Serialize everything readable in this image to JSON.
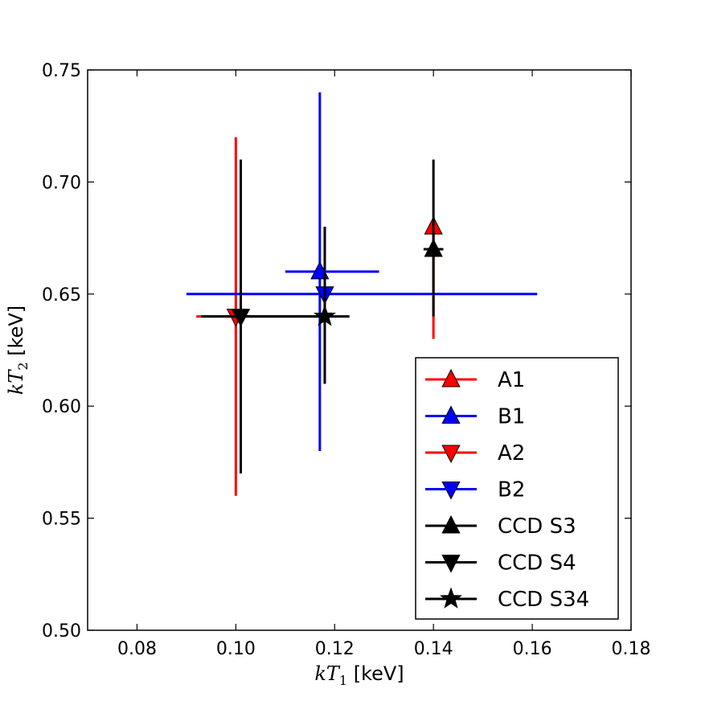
{
  "chart_data": {
    "type": "scatter",
    "title": "",
    "xlabel": {
      "math_var": "kT",
      "math_sub": "1",
      "unit": " [keV]"
    },
    "ylabel": {
      "math_var": "kT",
      "math_sub": "2",
      "unit": " [keV]"
    },
    "xlim": [
      0.07,
      0.18
    ],
    "ylim": [
      0.5,
      0.75
    ],
    "xticks": [
      0.08,
      0.1,
      0.12,
      0.14,
      0.16,
      0.18
    ],
    "yticks": [
      0.5,
      0.55,
      0.6,
      0.65,
      0.7,
      0.75
    ],
    "xtick_labels": [
      "0.08",
      "0.10",
      "0.12",
      "0.14",
      "0.16",
      "0.18"
    ],
    "ytick_labels": [
      "0.50",
      "0.55",
      "0.60",
      "0.65",
      "0.70",
      "0.75"
    ],
    "grid": false,
    "legend_position": "bottom-right",
    "series": [
      {
        "name": "A1",
        "color": "#ff0000",
        "marker": "triangle-up",
        "x": 0.14,
        "y": 0.68,
        "xerr": [
          0.139,
          0.141
        ],
        "yerr": [
          0.63,
          0.68
        ]
      },
      {
        "name": "B1",
        "color": "#0000ff",
        "marker": "triangle-up",
        "x": 0.117,
        "y": 0.66,
        "xerr": [
          0.11,
          0.129
        ],
        "yerr": [
          0.58,
          0.74
        ]
      },
      {
        "name": "A2",
        "color": "#ff0000",
        "marker": "triangle-down",
        "x": 0.1,
        "y": 0.64,
        "xerr": [
          0.092,
          0.101
        ],
        "yerr": [
          0.56,
          0.72
        ]
      },
      {
        "name": "B2",
        "color": "#0000ff",
        "marker": "triangle-down",
        "x": 0.118,
        "y": 0.65,
        "xerr": [
          0.09,
          0.161
        ],
        "yerr": [
          0.61,
          0.68
        ]
      },
      {
        "name": "CCD S3",
        "color": "#000000",
        "marker": "triangle-up",
        "x": 0.14,
        "y": 0.67,
        "xerr": [
          0.138,
          0.142
        ],
        "yerr": [
          0.64,
          0.71
        ]
      },
      {
        "name": "CCD S4",
        "color": "#000000",
        "marker": "triangle-down",
        "x": 0.101,
        "y": 0.64,
        "xerr": [
          0.093,
          0.118
        ],
        "yerr": [
          0.57,
          0.71
        ]
      },
      {
        "name": "CCD S34",
        "color": "#000000",
        "marker": "star",
        "x": 0.118,
        "y": 0.64,
        "xerr": [
          0.101,
          0.123
        ],
        "yerr": [
          0.61,
          0.68
        ]
      }
    ]
  }
}
